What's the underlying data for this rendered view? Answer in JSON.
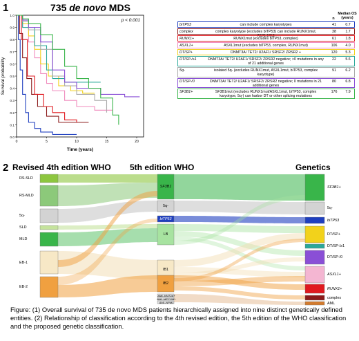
{
  "panel1": {
    "number": "1",
    "title_plain": "735 ",
    "title_italic": "de novo",
    "title_end": " MDS",
    "pvalue": "p < 0.001",
    "ylabel": "Survival probability",
    "xlabel": "Time (years)",
    "yticks": [
      "1.0",
      "0.9",
      "0.8",
      "0.7",
      "0.6",
      "0.5",
      "0.4",
      "0.3",
      "0.2",
      "0.1",
      "0.0"
    ],
    "xticks": [
      "0",
      "5",
      "10",
      "15",
      "20"
    ]
  },
  "table": {
    "col_n": "n",
    "col_os": "Median OS (years)",
    "rows": [
      {
        "label": "biTP53",
        "desc": "can include complex karyotypes",
        "n": "41",
        "os": "0.7",
        "color": "#1f3fbf"
      },
      {
        "label": "complex",
        "desc": "complex karyotype (excludes biTP53) can include RUNX1mut, ASXL1mut",
        "n": "38",
        "os": "1.7",
        "color": "#8b1a1a"
      },
      {
        "label": "RUNX1+",
        "desc": "RUNX1mut (excludes biTP53, complex)",
        "n": "61",
        "os": "1.8",
        "color": "#e0191f"
      },
      {
        "label": "ASXL1+",
        "desc": "ASXL1mut (excludes biTP53, complex, RUNX1mut)",
        "n": "106",
        "os": "4.0",
        "color": "#f08bbd"
      },
      {
        "label": "DT/SP+",
        "desc": "DNMT3A/ TET2/ U2AF1/ SRSF2/ ZRSR2 +",
        "n": "120",
        "os": "5.3",
        "color": "#f2d21b"
      },
      {
        "label": "DT/SP-/≥1",
        "desc": "DNMT3A/ TET2/ U2AF1/ SRSF2/ ZRSR2 negative; >0 mutations in any of 21 additional genes",
        "n": "22",
        "os": "5.6",
        "color": "#2aa89a"
      },
      {
        "label": "5q-",
        "desc": "isolated 5q- (excludes RUNX1mut, ASXL1mut, biTP53, complex karyotype)",
        "n": "91",
        "os": "6.2",
        "color": "#a9a9a9"
      },
      {
        "label": "DT/SP-/0",
        "desc": "DNMT3A/ TET2/ U2AF1/ SRSF2/ ZRSR2 negative; 0 mutations in 21 additional genes",
        "n": "80",
        "os": "6.8",
        "color": "#8a4fd6"
      },
      {
        "label": "SF3B1+",
        "desc": "SF3B1mut (excludes RUNX1mut/ASXL1mut, biTP53, complex karyotype, 5q-) can harbor DT or other splicing mutations",
        "n": "176",
        "os": "7.9",
        "color": "#39b54a"
      }
    ]
  },
  "panel2": {
    "number": "2",
    "col1_title": "Revised 4th edition WHO",
    "col2_title": "5th edition WHO",
    "col3_title": "Genetics",
    "left_labels": [
      "RS-SLD",
      "RS-MLD",
      "5q-",
      "SLD",
      "MLD",
      "EB-1",
      "EB-2"
    ],
    "mid_labels": [
      "SF3B1",
      "5q-",
      "biTP53",
      "LB",
      "IB1",
      "IB2",
      "AML-KMT2A+",
      "AML-MECOM+",
      "AML-NPM1"
    ],
    "right_labels": [
      "SF3B1+",
      "5q-",
      "biTP53",
      "DT/SP+",
      "DT/SP-/≥1",
      "DT/SP-/0",
      "ASXL1+",
      "RUNX1+",
      "complex",
      "AML"
    ]
  },
  "caption": {
    "text": "Figure: (1) Overall survival of 735 de novo MDS patients hierarchically assigned into nine distinct genetically defined entities. (2) Relationship of classification according to the 4th revised edition, the 5th edition of the WHO classification and the proposed genetic classification."
  }
}
